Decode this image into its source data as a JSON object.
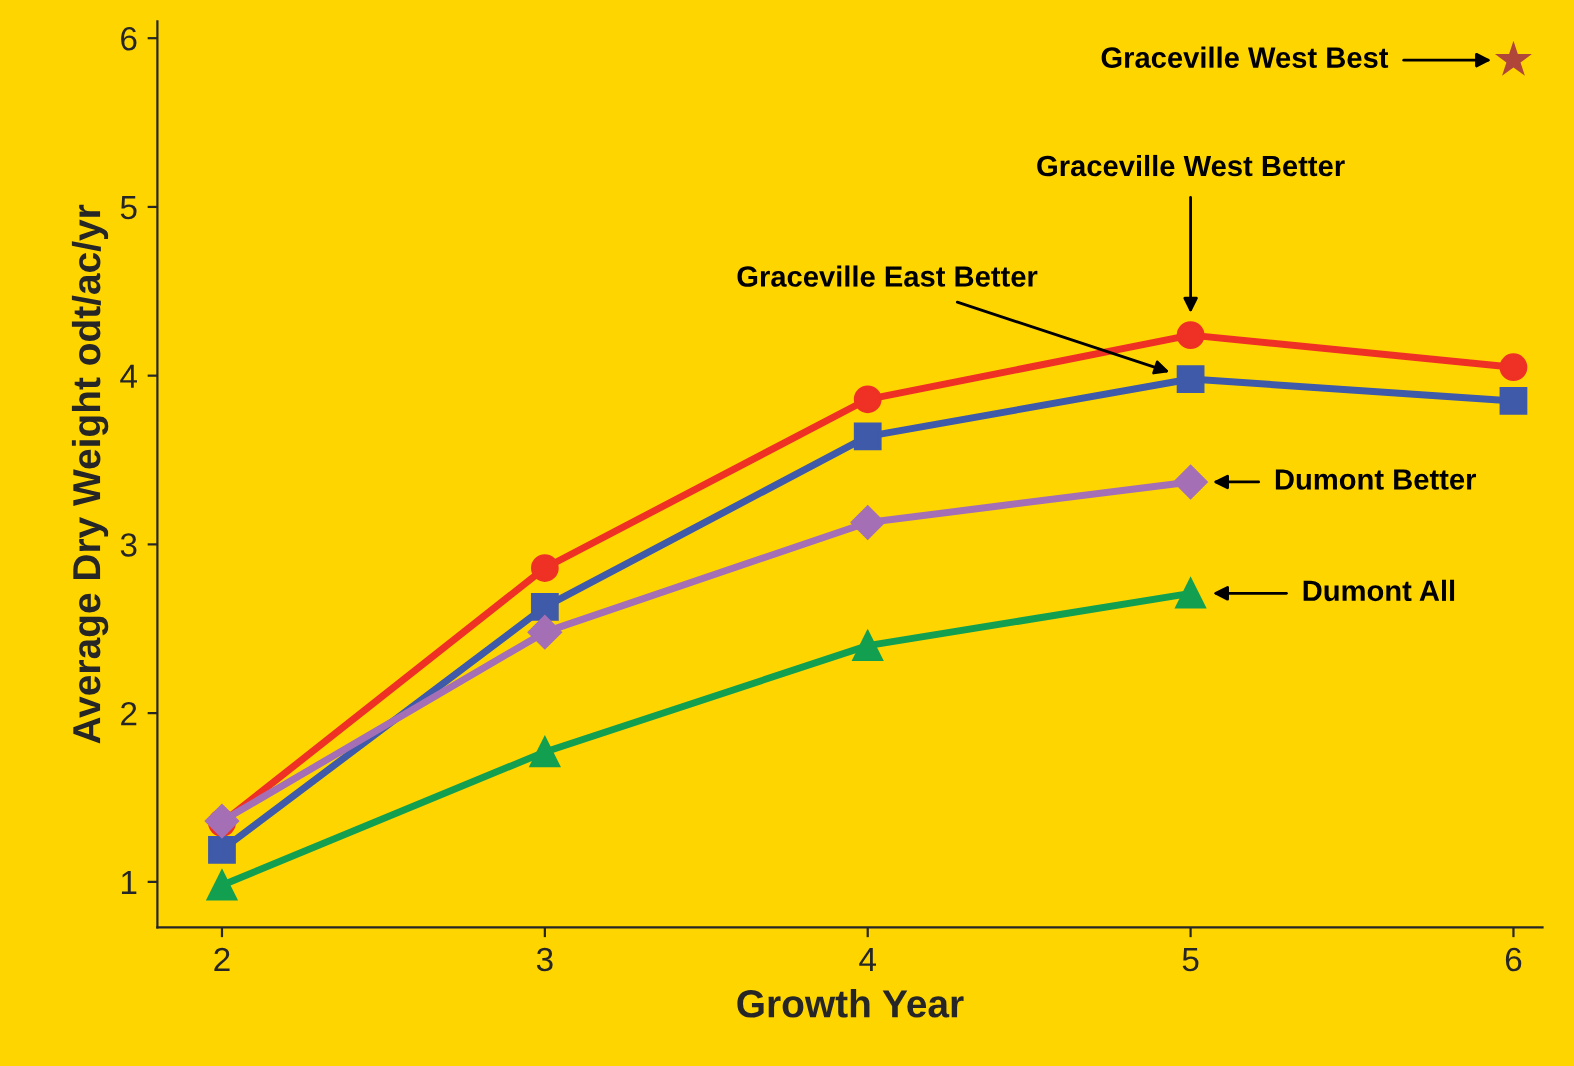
{
  "chart_data": {
    "type": "line",
    "xlabel": "Growth Year",
    "ylabel": "Average Dry Weight odt/ac/yr",
    "x": [
      2,
      3,
      4,
      5,
      6
    ],
    "series": [
      {
        "name": "Graceville West Better",
        "color": "#ee3124",
        "marker": "circle",
        "values": [
          1.35,
          2.86,
          3.86,
          4.24,
          4.05
        ]
      },
      {
        "name": "Graceville East Better",
        "color": "#3e5aa8",
        "marker": "square",
        "values": [
          1.19,
          2.63,
          3.64,
          3.98,
          3.85
        ]
      },
      {
        "name": "Dumont Better",
        "color": "#a46fb4",
        "marker": "diamond",
        "values": [
          1.36,
          2.48,
          3.13,
          3.37,
          null
        ]
      },
      {
        "name": "Dumont All",
        "color": "#12a050",
        "marker": "triangle",
        "values": [
          0.98,
          1.77,
          2.4,
          2.71,
          null
        ]
      },
      {
        "name": "Graceville West Best",
        "type": "scatter",
        "color": "#b0463a",
        "marker": "star",
        "x": [
          6
        ],
        "values": [
          5.87
        ]
      }
    ],
    "xlim": [
      1.8,
      6.09
    ],
    "ylim": [
      0.73,
      6.1
    ],
    "xticks": [
      2,
      3,
      4,
      5,
      6
    ],
    "yticks": [
      1,
      2,
      3,
      4,
      5,
      6
    ],
    "grid": false,
    "legend": false
  }
}
